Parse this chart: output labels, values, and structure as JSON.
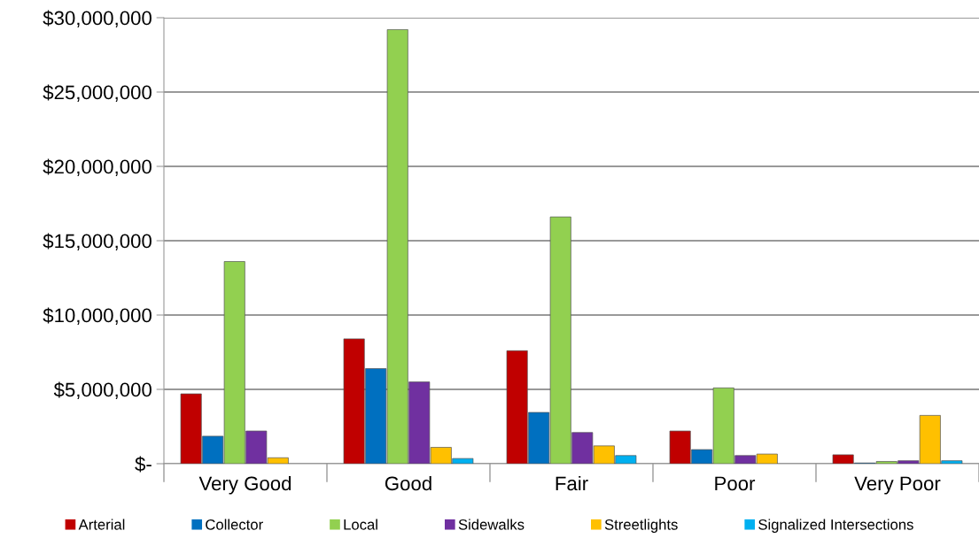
{
  "chart_data": {
    "type": "bar",
    "categories": [
      "Very Good",
      "Good",
      "Fair",
      "Poor",
      "Very Poor"
    ],
    "series": [
      {
        "name": "Arterial",
        "color": "#c00000",
        "values": [
          4700000,
          8400000,
          7600000,
          2200000,
          600000
        ]
      },
      {
        "name": "Collector",
        "color": "#0070c0",
        "values": [
          1850000,
          6400000,
          3450000,
          950000,
          50000
        ]
      },
      {
        "name": "Local",
        "color": "#92d050",
        "values": [
          13600000,
          29200000,
          16600000,
          5100000,
          150000
        ]
      },
      {
        "name": "Sidewalks",
        "color": "#7030a0",
        "values": [
          2200000,
          5500000,
          2100000,
          550000,
          200000
        ]
      },
      {
        "name": "Streetlights",
        "color": "#ffc000",
        "values": [
          400000,
          1100000,
          1200000,
          650000,
          3250000
        ]
      },
      {
        "name": "Signalized Intersections",
        "color": "#00b0f0",
        "values": [
          null,
          350000,
          550000,
          null,
          200000
        ]
      }
    ],
    "ylim": [
      0,
      30000000
    ],
    "yticks": [
      {
        "value": 0,
        "label": "$-"
      },
      {
        "value": 5000000,
        "label": "$5,000,000"
      },
      {
        "value": 10000000,
        "label": "$10,000,000"
      },
      {
        "value": 15000000,
        "label": "$15,000,000"
      },
      {
        "value": 20000000,
        "label": "$20,000,000"
      },
      {
        "value": 25000000,
        "label": "$25,000,000"
      },
      {
        "value": 30000000,
        "label": "$30,000,000"
      }
    ],
    "grid": "y",
    "legend": "bottom"
  }
}
